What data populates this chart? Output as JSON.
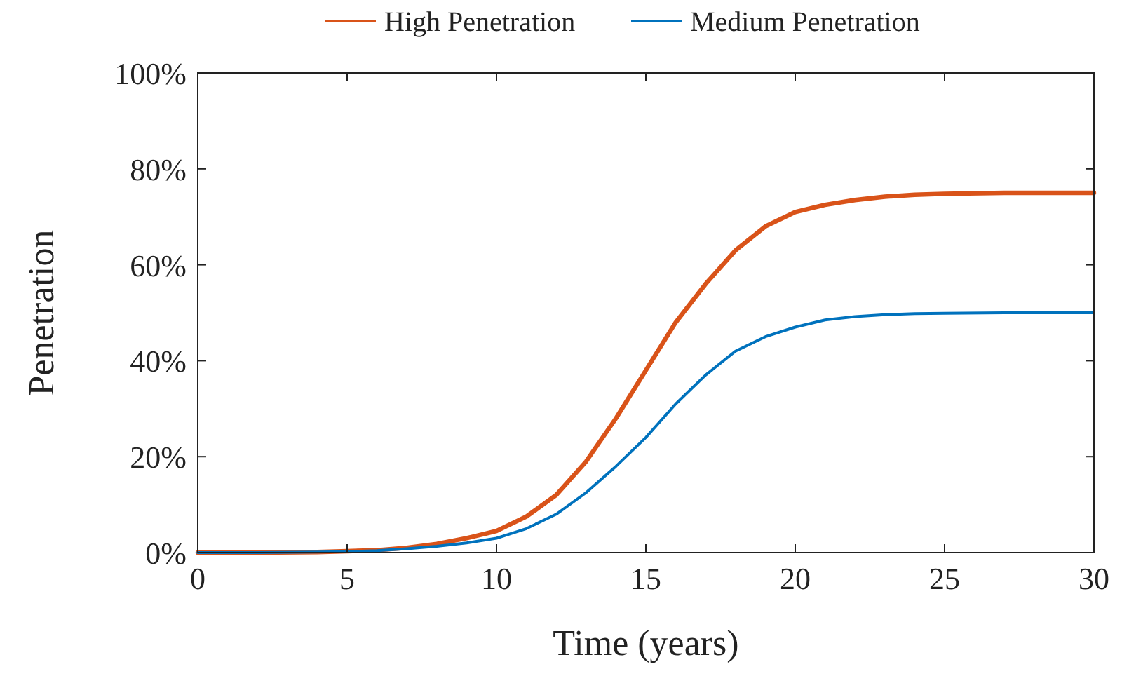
{
  "chart_data": {
    "type": "line",
    "xlabel": "Time (years)",
    "ylabel": "Penetration",
    "x": [
      0,
      2,
      4,
      5,
      6,
      7,
      8,
      9,
      10,
      11,
      12,
      13,
      14,
      15,
      16,
      17,
      18,
      19,
      20,
      21,
      22,
      23,
      24,
      25,
      27,
      30
    ],
    "series": [
      {
        "name": "High Penetration",
        "color": "#d95319",
        "values": [
          0,
          0,
          0.1,
          0.3,
          0.5,
          1,
          1.8,
          3,
          4.5,
          7.5,
          12,
          19,
          28,
          38,
          48,
          56,
          63,
          68,
          71,
          72.5,
          73.5,
          74.2,
          74.6,
          74.8,
          75,
          75
        ]
      },
      {
        "name": "Medium Penetration",
        "color": "#0072bd",
        "values": [
          0,
          0,
          0.1,
          0.2,
          0.4,
          0.8,
          1.3,
          2,
          3,
          5,
          8,
          12.5,
          18,
          24,
          31,
          37,
          42,
          45,
          47,
          48.5,
          49.2,
          49.6,
          49.8,
          49.9,
          50,
          50
        ]
      }
    ],
    "xlim": [
      0,
      30
    ],
    "xticks": [
      0,
      5,
      10,
      15,
      20,
      25,
      30
    ],
    "ylim": [
      0,
      100
    ],
    "yticks": [
      {
        "value": 0,
        "label": "0%"
      },
      {
        "value": 20,
        "label": "20%"
      },
      {
        "value": 40,
        "label": "40%"
      },
      {
        "value": 60,
        "label": "60%"
      },
      {
        "value": 80,
        "label": "80%"
      },
      {
        "value": 100,
        "label": "100%"
      }
    ],
    "grid": false,
    "legend": "top",
    "line_style": "solid",
    "marker": "none"
  }
}
